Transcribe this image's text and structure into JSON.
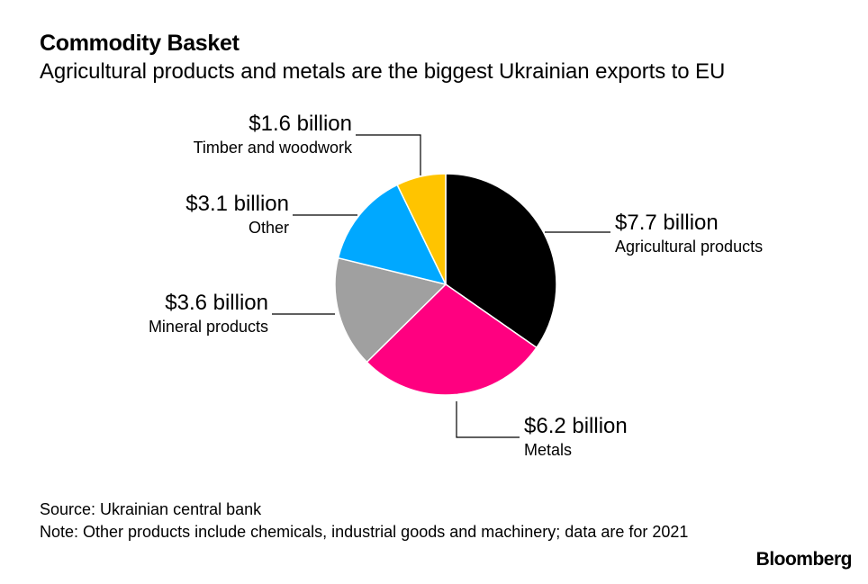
{
  "header": {
    "title": "Commodity Basket",
    "subtitle": "Agricultural products and metals are the biggest Ukrainian exports to EU"
  },
  "chart_data": {
    "type": "pie",
    "title": "Commodity Basket",
    "subtitle": "Agricultural products and metals are the biggest Ukrainian exports to EU",
    "unit": "billion USD",
    "slices": [
      {
        "name": "Agricultural products",
        "value": 7.7,
        "label": "$7.7 billion",
        "color": "#000000"
      },
      {
        "name": "Metals",
        "value": 6.2,
        "label": "$6.2 billion",
        "color": "#ff0080"
      },
      {
        "name": "Mineral products",
        "value": 3.6,
        "label": "$3.6 billion",
        "color": "#a0a0a0"
      },
      {
        "name": "Other",
        "value": 3.1,
        "label": "$3.1 billion",
        "color": "#00a8ff"
      },
      {
        "name": "Timber and woodwork",
        "value": 1.6,
        "label": "$1.6 billion",
        "color": "#ffc400"
      }
    ]
  },
  "footer": {
    "source": "Source: Ukrainian central bank",
    "note": "Note: Other products include chemicals, industrial goods and machinery; data are for 2021",
    "brand": "Bloomberg"
  }
}
